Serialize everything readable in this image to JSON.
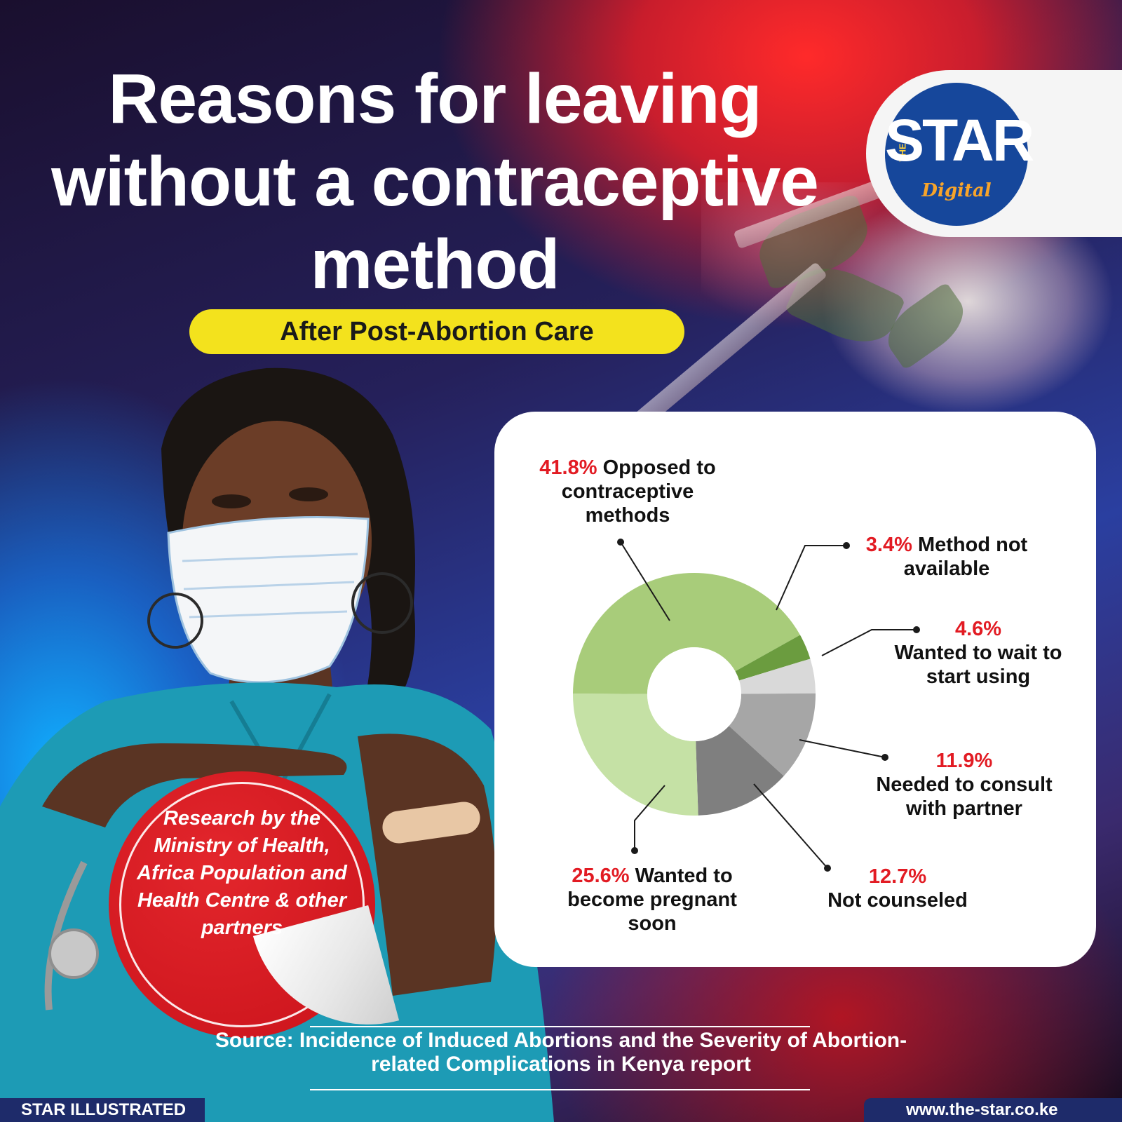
{
  "header": {
    "title": "Reasons for leaving without a contraceptive method",
    "subtitle": "After Post-Abortion Care"
  },
  "logo": {
    "the": "THE",
    "star": "STAR",
    "digital": "Digital"
  },
  "badge": {
    "text": "Research by the Ministry of Health, Africa Population and Health Centre & other partners"
  },
  "source": "Source: Incidence of Induced Abortions and the Severity of Abortion-related Complications in Kenya report",
  "footer": {
    "left": "STAR ILLUSTRATED",
    "right": "www.the-star.co.ke"
  },
  "colors": {
    "accent_red": "#e21b23",
    "subtitle_yellow": "#f3e21d",
    "logo_blue": "#16479b",
    "logo_orange": "#f7a42a"
  },
  "chart_data": {
    "type": "pie",
    "style": "donut",
    "title": "",
    "slices": [
      {
        "value": 41.8,
        "percent": "41.8%",
        "label": "Opposed to contraceptive methods",
        "color": "#a8cc7a"
      },
      {
        "value": 3.4,
        "percent": "3.4%",
        "label": "Method not available",
        "color": "#6b9c3f"
      },
      {
        "value": 4.6,
        "percent": "4.6%",
        "label": "Wanted to wait to start using",
        "color": "#d9d9d9"
      },
      {
        "value": 11.9,
        "percent": "11.9%",
        "label": "Needed to consult with partner",
        "color": "#a6a6a6"
      },
      {
        "value": 12.7,
        "percent": "12.7%",
        "label": "Not counseled",
        "color": "#7f7f7f"
      },
      {
        "value": 25.6,
        "percent": "25.6%",
        "label": "Wanted to become pregnant soon",
        "color": "#c5e1a5"
      }
    ]
  }
}
